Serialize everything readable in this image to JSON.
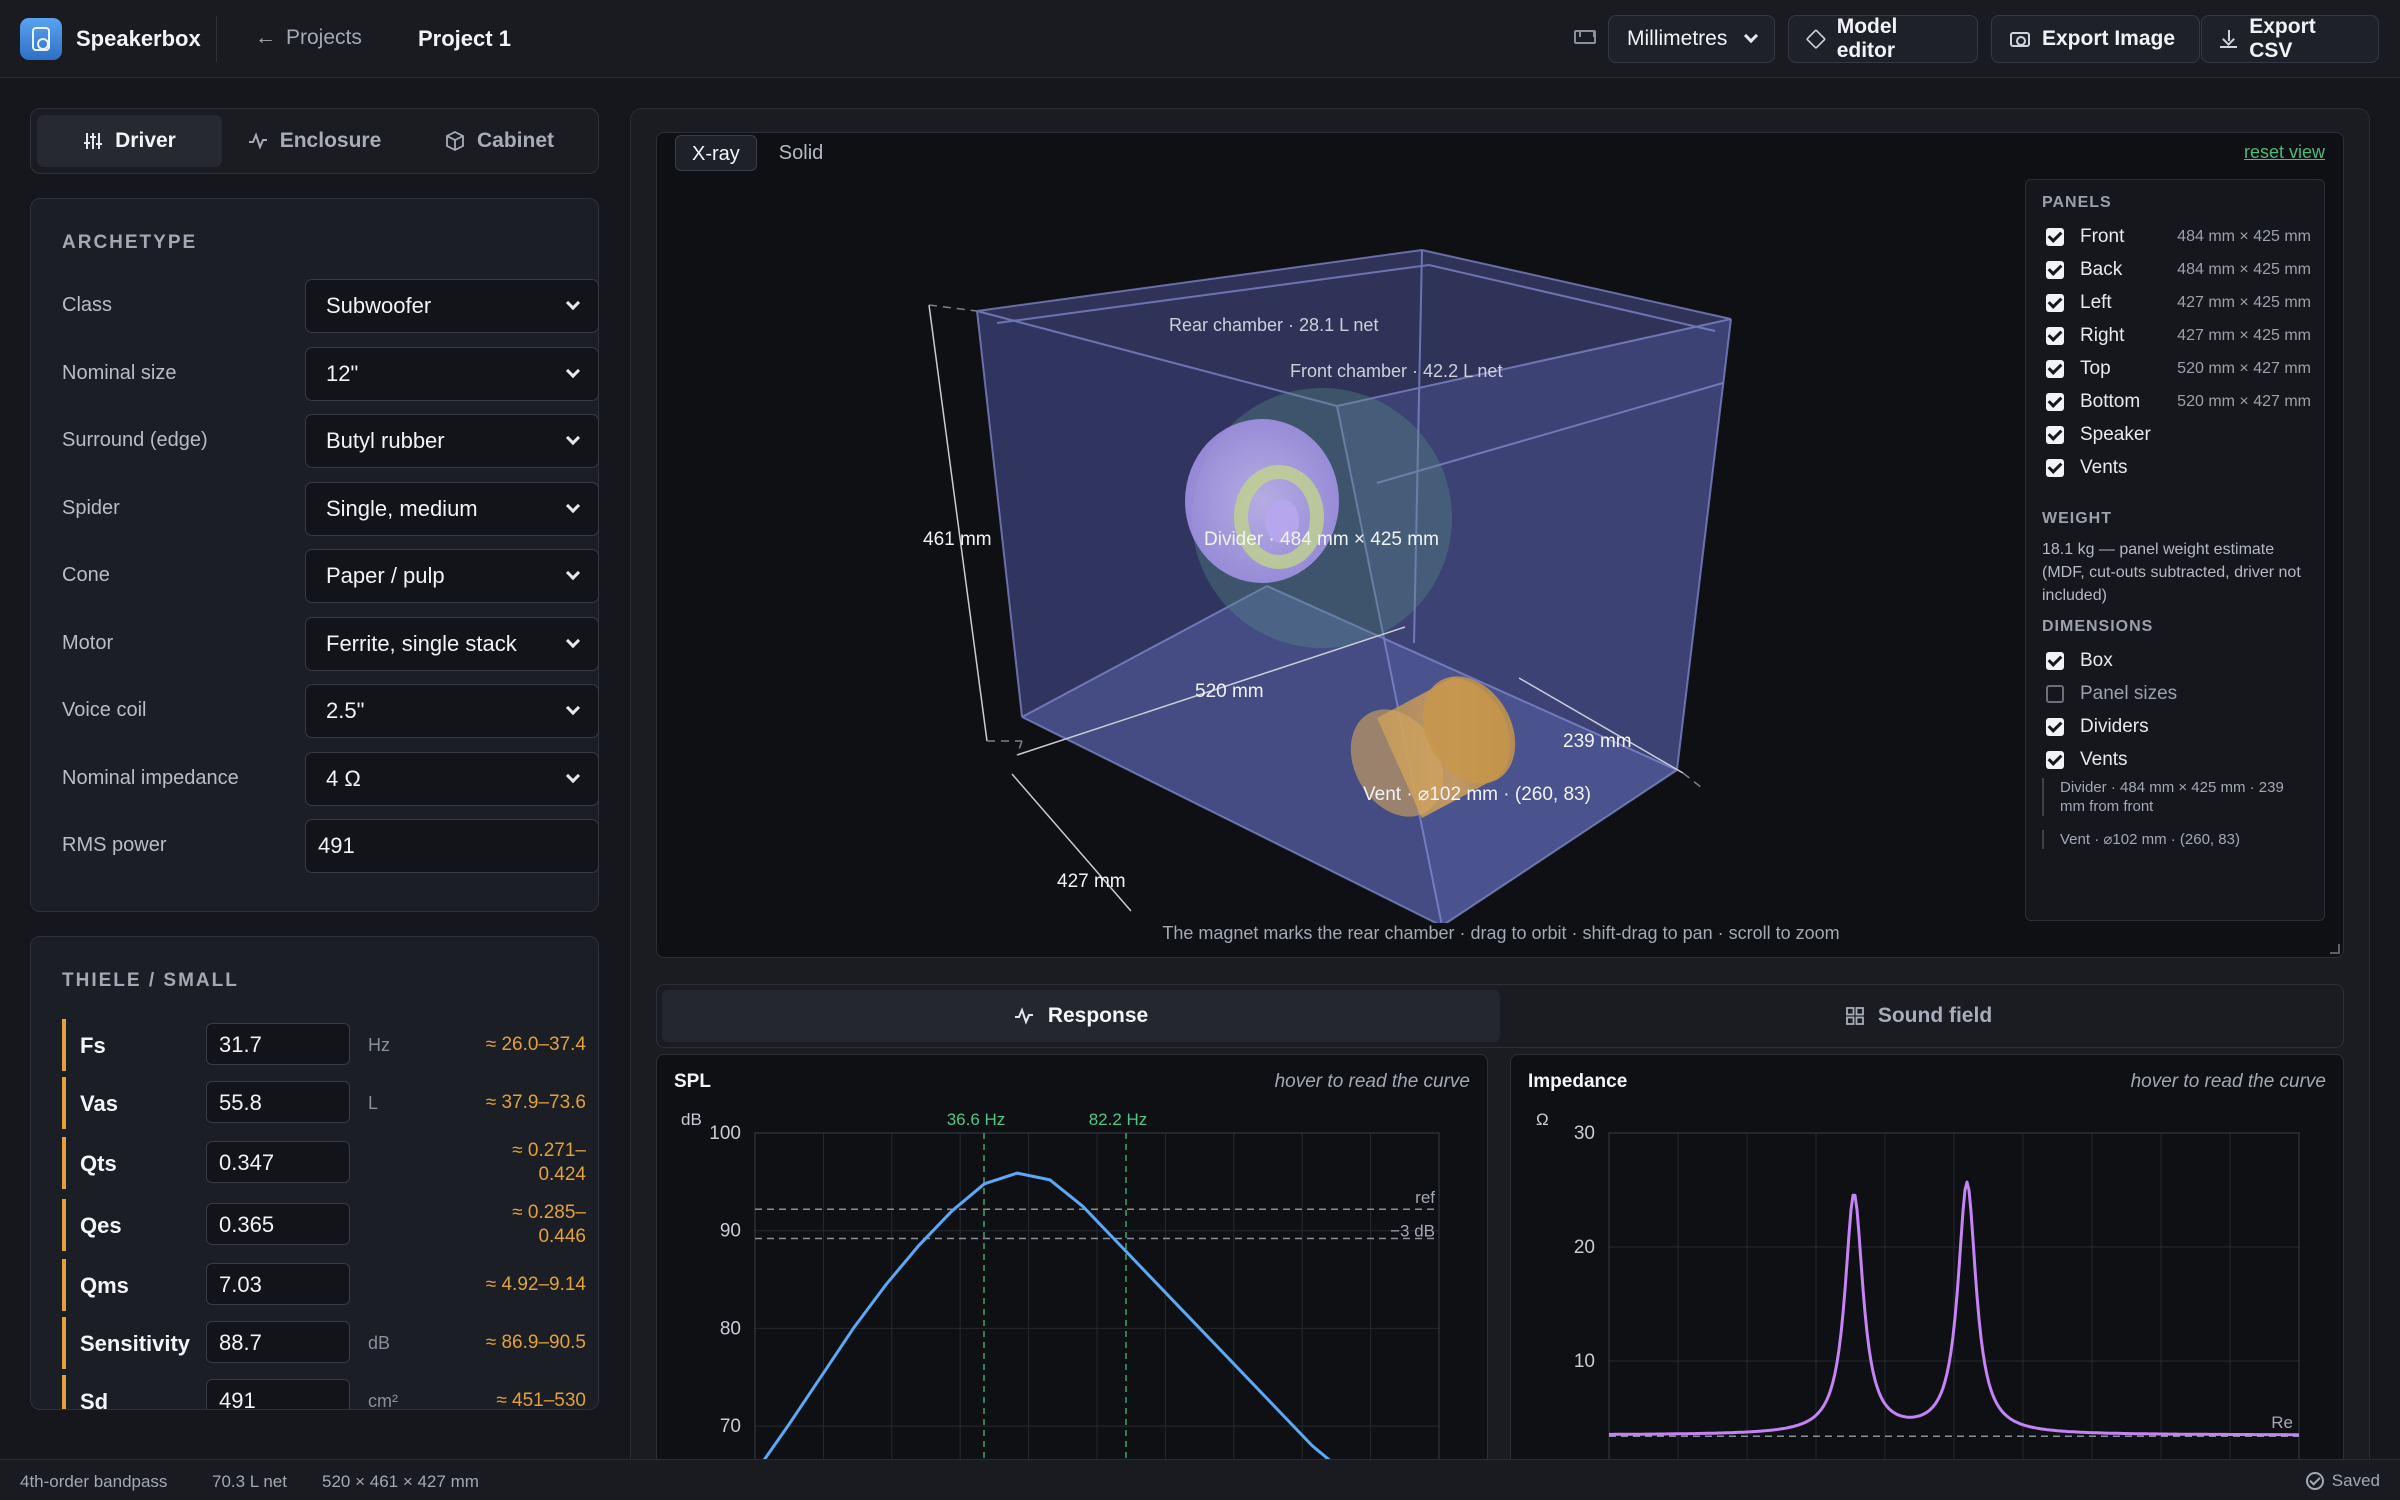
{
  "header": {
    "app_name": "Speakerbox",
    "projects_label": "Projects",
    "project_title": "Project 1",
    "units_value": "Millimetres",
    "model_editor_label": "Model editor",
    "export_image_label": "Export Image",
    "export_csv_label": "Export CSV"
  },
  "left_tabs": [
    {
      "label": "Driver",
      "active": true
    },
    {
      "label": "Enclosure",
      "active": false
    },
    {
      "label": "Cabinet",
      "active": false
    }
  ],
  "archetype": {
    "title": "ARCHETYPE",
    "fields": [
      {
        "label": "Class",
        "value": "Subwoofer"
      },
      {
        "label": "Nominal size",
        "value": "12\""
      },
      {
        "label": "Surround (edge)",
        "value": "Butyl rubber"
      },
      {
        "label": "Spider",
        "value": "Single, medium"
      },
      {
        "label": "Cone",
        "value": "Paper / pulp"
      },
      {
        "label": "Motor",
        "value": "Ferrite, single stack"
      },
      {
        "label": "Voice coil",
        "value": "2.5\""
      },
      {
        "label": "Nominal impedance",
        "value": "4 Ω"
      }
    ],
    "rms_label": "RMS power",
    "rms_value": "491"
  },
  "thiele_small": {
    "title": "THIELE / SMALL",
    "params": [
      {
        "name": "Fs",
        "value": "31.7",
        "unit": "Hz",
        "range": "≈ 26.0–37.4"
      },
      {
        "name": "Vas",
        "value": "55.8",
        "unit": "L",
        "range": "≈ 37.9–73.6"
      },
      {
        "name": "Qts",
        "value": "0.347",
        "unit": "",
        "range": "≈ 0.271–\n0.424"
      },
      {
        "name": "Qes",
        "value": "0.365",
        "unit": "",
        "range": "≈ 0.285–\n0.446"
      },
      {
        "name": "Qms",
        "value": "7.03",
        "unit": "",
        "range": "≈ 4.92–9.14"
      },
      {
        "name": "Sensitivity",
        "value": "88.7",
        "unit": "dB",
        "range": "≈ 86.9–90.5"
      },
      {
        "name": "Sd",
        "value": "491",
        "unit": "cm²",
        "range": "≈ 451–530"
      }
    ]
  },
  "viewer": {
    "tabs": [
      {
        "label": "X-ray",
        "active": true
      },
      {
        "label": "Solid",
        "active": false
      }
    ],
    "reset_label": "reset view",
    "labels": {
      "rear_chamber": "Rear chamber · 28.1 L net",
      "front_chamber": "Front chamber · 42.2 L net",
      "divider": "Divider · 484 mm × 425 mm",
      "vent": "Vent · ⌀102 mm · (260, 83)",
      "height": "461 mm",
      "width": "520 mm",
      "depth_left": "427 mm",
      "depth_right": "239 mm"
    },
    "hint": "The magnet marks the rear chamber · drag to orbit · shift-drag to pan · scroll to zoom",
    "side": {
      "panels_title": "PANELS",
      "panels": [
        {
          "label": "Front",
          "dim": "484 mm × 425 mm",
          "checked": true
        },
        {
          "label": "Back",
          "dim": "484 mm × 425 mm",
          "checked": true
        },
        {
          "label": "Left",
          "dim": "427 mm × 425 mm",
          "checked": true
        },
        {
          "label": "Right",
          "dim": "427 mm × 425 mm",
          "checked": true
        },
        {
          "label": "Top",
          "dim": "520 mm × 427 mm",
          "checked": true
        },
        {
          "label": "Bottom",
          "dim": "520 mm × 427 mm",
          "checked": true
        },
        {
          "label": "Speaker",
          "dim": "",
          "checked": true
        },
        {
          "label": "Vents",
          "dim": "",
          "checked": true
        }
      ],
      "weight_title": "WEIGHT",
      "weight_text": "18.1 kg — panel weight estimate (MDF, cut-outs subtracted, driver not included)",
      "dimensions_title": "DIMENSIONS",
      "dimensions": [
        {
          "label": "Box",
          "checked": true
        },
        {
          "label": "Panel sizes",
          "checked": false
        },
        {
          "label": "Dividers",
          "checked": true
        },
        {
          "label": "Vents",
          "checked": true
        }
      ],
      "notes": [
        "Divider · 484 mm × 425 mm · 239 mm from front",
        "Vent · ⌀102 mm · (260, 83)"
      ]
    }
  },
  "response_tabs": [
    {
      "label": "Response",
      "active": true
    },
    {
      "label": "Sound field",
      "active": false
    }
  ],
  "chart_data": [
    {
      "type": "line",
      "title": "SPL",
      "hint": "hover to read the curve",
      "ylabel": "dB",
      "y_ticks": [
        "100",
        "90",
        "80",
        "70"
      ],
      "ylim": [
        65,
        100
      ],
      "markers": [
        {
          "label": "36.6 Hz"
        },
        {
          "label": "82.2 Hz"
        }
      ],
      "ref_lines": [
        {
          "label": "ref",
          "y": 92.2
        },
        {
          "label": "−3 dB",
          "y": 89.2
        }
      ],
      "series": [
        {
          "color": "#5ba8f5",
          "points_y": [
            65.2,
            70.0,
            75.0,
            80.0,
            84.5,
            88.5,
            92.0,
            94.8,
            95.9,
            95.2,
            92.5,
            89.0,
            85.5,
            82.0,
            78.5,
            75.0,
            71.5,
            68.0,
            65.2
          ]
        }
      ]
    },
    {
      "type": "line",
      "title": "Impedance",
      "hint": "hover to read the curve",
      "ylabel": "Ω",
      "y_ticks": [
        "30",
        "20",
        "10"
      ],
      "ylim": [
        0,
        30
      ],
      "ref_lines": [
        {
          "label": "Re",
          "y": 3.4
        }
      ],
      "series": [
        {
          "color": "#c384f5",
          "peaks": [
            {
              "y": 24.5
            },
            {
              "y": 25.5
            }
          ],
          "min_y": 3.5,
          "valley_y": 5.0
        }
      ]
    }
  ],
  "status": {
    "alignment": "4th-order bandpass",
    "volume": "70.3 L net",
    "size": "520 × 461 × 427 mm",
    "saved": "Saved"
  }
}
